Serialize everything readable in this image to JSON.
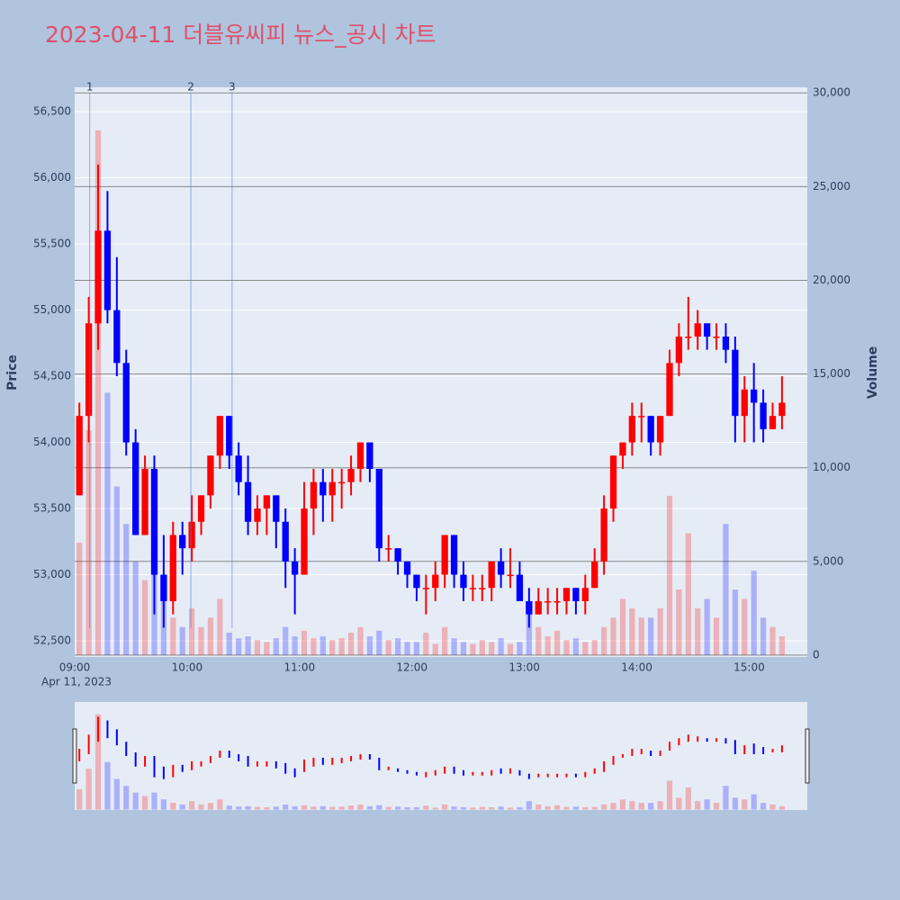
{
  "chart_data": {
    "type": "candlestick",
    "title": "2023-04-11 더블유씨피 뉴스_공시 차트",
    "y_label": "Price",
    "y2_label": "Volume",
    "x_date_label": "Apr 11, 2023",
    "xlim": [
      "09:00",
      "15:31"
    ],
    "xticks": [
      "09:00",
      "10:00",
      "11:00",
      "12:00",
      "13:00",
      "14:00",
      "15:00"
    ],
    "ylim": [
      52378,
      56684
    ],
    "yticks": [
      {
        "value": 52500,
        "label": "52,500"
      },
      {
        "value": 53000,
        "label": "53,000"
      },
      {
        "value": 53500,
        "label": "53,500"
      },
      {
        "value": 54000,
        "label": "54,000"
      },
      {
        "value": 54500,
        "label": "54,500"
      },
      {
        "value": 55000,
        "label": "55,000"
      },
      {
        "value": 55500,
        "label": "55,500"
      },
      {
        "value": 56000,
        "label": "56,000"
      },
      {
        "value": 56500,
        "label": "56,500"
      }
    ],
    "y2lim": [
      -100,
      30300
    ],
    "y2ticks": [
      0,
      {
        "value": 5000,
        "label": "5,000"
      },
      {
        "value": 10000,
        "label": "10,000"
      },
      {
        "value": 15000,
        "label": "15,000"
      },
      {
        "value": 20000,
        "label": "20,000"
      },
      {
        "value": 25000,
        "label": "25,000"
      },
      {
        "value": 30000,
        "label": "30,000"
      }
    ],
    "increasing_color": "#ff0000",
    "decreasing_color": "#0000ff",
    "news": [
      {
        "x": "09:08",
        "label": "1"
      },
      {
        "x": "10:02",
        "label": "2"
      },
      {
        "x": "10:24",
        "label": "3"
      }
    ],
    "x": [
      "09:00",
      "09:05",
      "09:10",
      "09:15",
      "09:20",
      "09:25",
      "09:30",
      "09:35",
      "09:40",
      "09:45",
      "09:50",
      "09:55",
      "10:00",
      "10:05",
      "10:10",
      "10:15",
      "10:20",
      "10:25",
      "10:30",
      "10:35",
      "10:40",
      "10:45",
      "10:50",
      "10:55",
      "11:00",
      "11:05",
      "11:10",
      "11:15",
      "11:20",
      "11:25",
      "11:30",
      "11:35",
      "11:40",
      "11:45",
      "11:50",
      "11:55",
      "12:00",
      "12:05",
      "12:10",
      "12:15",
      "12:20",
      "12:25",
      "12:30",
      "12:35",
      "12:40",
      "12:45",
      "12:50",
      "12:55",
      "13:00",
      "13:05",
      "13:10",
      "13:15",
      "13:20",
      "13:25",
      "13:30",
      "13:35",
      "13:40",
      "13:45",
      "13:50",
      "13:55",
      "14:00",
      "14:05",
      "14:10",
      "14:15",
      "14:20",
      "14:25",
      "14:30",
      "14:35",
      "14:40",
      "14:45",
      "14:50",
      "14:55",
      "15:00",
      "15:05",
      "15:10",
      "15:15"
    ],
    "open": [
      53600,
      54200,
      54900,
      55600,
      55000,
      54600,
      54000,
      53300,
      53800,
      53000,
      52800,
      53300,
      53200,
      53400,
      53600,
      53900,
      54200,
      53900,
      53700,
      53400,
      53500,
      53600,
      53400,
      53100,
      53000,
      53500,
      53700,
      53600,
      53700,
      53700,
      53800,
      54000,
      53800,
      53200,
      53200,
      53100,
      53000,
      52900,
      52900,
      53000,
      53300,
      53000,
      52900,
      52900,
      52900,
      53100,
      53000,
      53000,
      52800,
      52700,
      52800,
      52800,
      52800,
      52900,
      52800,
      52900,
      53100,
      53500,
      53900,
      54000,
      54200,
      54200,
      54000,
      54200,
      54600,
      54800,
      54800,
      54900,
      54800,
      54800,
      54700,
      54200,
      54400,
      54300,
      54100,
      54200
    ],
    "high": [
      54300,
      55100,
      56100,
      55900,
      55400,
      54700,
      54100,
      53900,
      53900,
      53300,
      53400,
      53400,
      53600,
      53600,
      53900,
      54200,
      54200,
      54000,
      53900,
      53600,
      53600,
      53600,
      53500,
      53200,
      53700,
      53800,
      53800,
      53800,
      53800,
      53900,
      54000,
      54000,
      53800,
      53300,
      53200,
      53100,
      53000,
      53000,
      53100,
      53300,
      53300,
      53100,
      53000,
      53000,
      53100,
      53200,
      53200,
      53100,
      52900,
      52900,
      52900,
      52900,
      52900,
      52900,
      53000,
      53200,
      53600,
      53900,
      54000,
      54300,
      54300,
      54200,
      54200,
      54700,
      54900,
      55100,
      55000,
      54900,
      54900,
      54900,
      54800,
      54500,
      54600,
      54400,
      54300,
      54500
    ],
    "low": [
      53600,
      54000,
      54700,
      54900,
      54500,
      53900,
      53300,
      53300,
      52700,
      52600,
      52700,
      53000,
      53100,
      53300,
      53500,
      53800,
      53800,
      53600,
      53300,
      53300,
      53300,
      53200,
      52900,
      52700,
      53000,
      53300,
      53400,
      53400,
      53500,
      53600,
      53700,
      53700,
      53100,
      53100,
      53000,
      52900,
      52800,
      52700,
      52800,
      52900,
      52900,
      52800,
      52800,
      52800,
      52800,
      52900,
      52900,
      52800,
      52600,
      52700,
      52700,
      52700,
      52700,
      52700,
      52700,
      52900,
      53000,
      53400,
      53800,
      53900,
      54000,
      53900,
      53900,
      54200,
      54500,
      54700,
      54700,
      54700,
      54700,
      54600,
      54000,
      54000,
      54000,
      54000,
      54100,
      54100
    ],
    "close": [
      54200,
      54900,
      55600,
      55000,
      54600,
      54000,
      53300,
      53800,
      53000,
      52800,
      53300,
      53200,
      53400,
      53600,
      53900,
      54200,
      53900,
      53700,
      53400,
      53500,
      53600,
      53400,
      53100,
      53000,
      53500,
      53700,
      53600,
      53700,
      53700,
      53800,
      54000,
      53800,
      53200,
      53200,
      53100,
      53000,
      52900,
      52900,
      53000,
      53300,
      53000,
      52900,
      52900,
      52900,
      53100,
      53000,
      53000,
      52800,
      52700,
      52800,
      52800,
      52800,
      52900,
      52800,
      52900,
      53100,
      53500,
      53900,
      54000,
      54200,
      54200,
      54000,
      54200,
      54600,
      54800,
      54800,
      54900,
      54800,
      54800,
      54700,
      54200,
      54400,
      54300,
      54100,
      54200,
      54300
    ],
    "volume": [
      6000,
      12000,
      28000,
      14000,
      9000,
      7000,
      5000,
      4000,
      5000,
      3000,
      2000,
      1500,
      2500,
      1500,
      2000,
      3000,
      1200,
      900,
      1000,
      800,
      700,
      900,
      1500,
      1000,
      1300,
      900,
      1000,
      800,
      900,
      1200,
      1500,
      1000,
      1300,
      800,
      900,
      700,
      700,
      1200,
      600,
      1500,
      900,
      700,
      600,
      800,
      700,
      900,
      600,
      700,
      2500,
      1500,
      1000,
      1300,
      800,
      900,
      700,
      800,
      1500,
      2000,
      3000,
      2500,
      2000,
      2000,
      2500,
      8500,
      3500,
      6500,
      2500,
      3000,
      2000,
      7000,
      3500,
      3000,
      4500,
      2000,
      1500,
      1000
    ]
  }
}
